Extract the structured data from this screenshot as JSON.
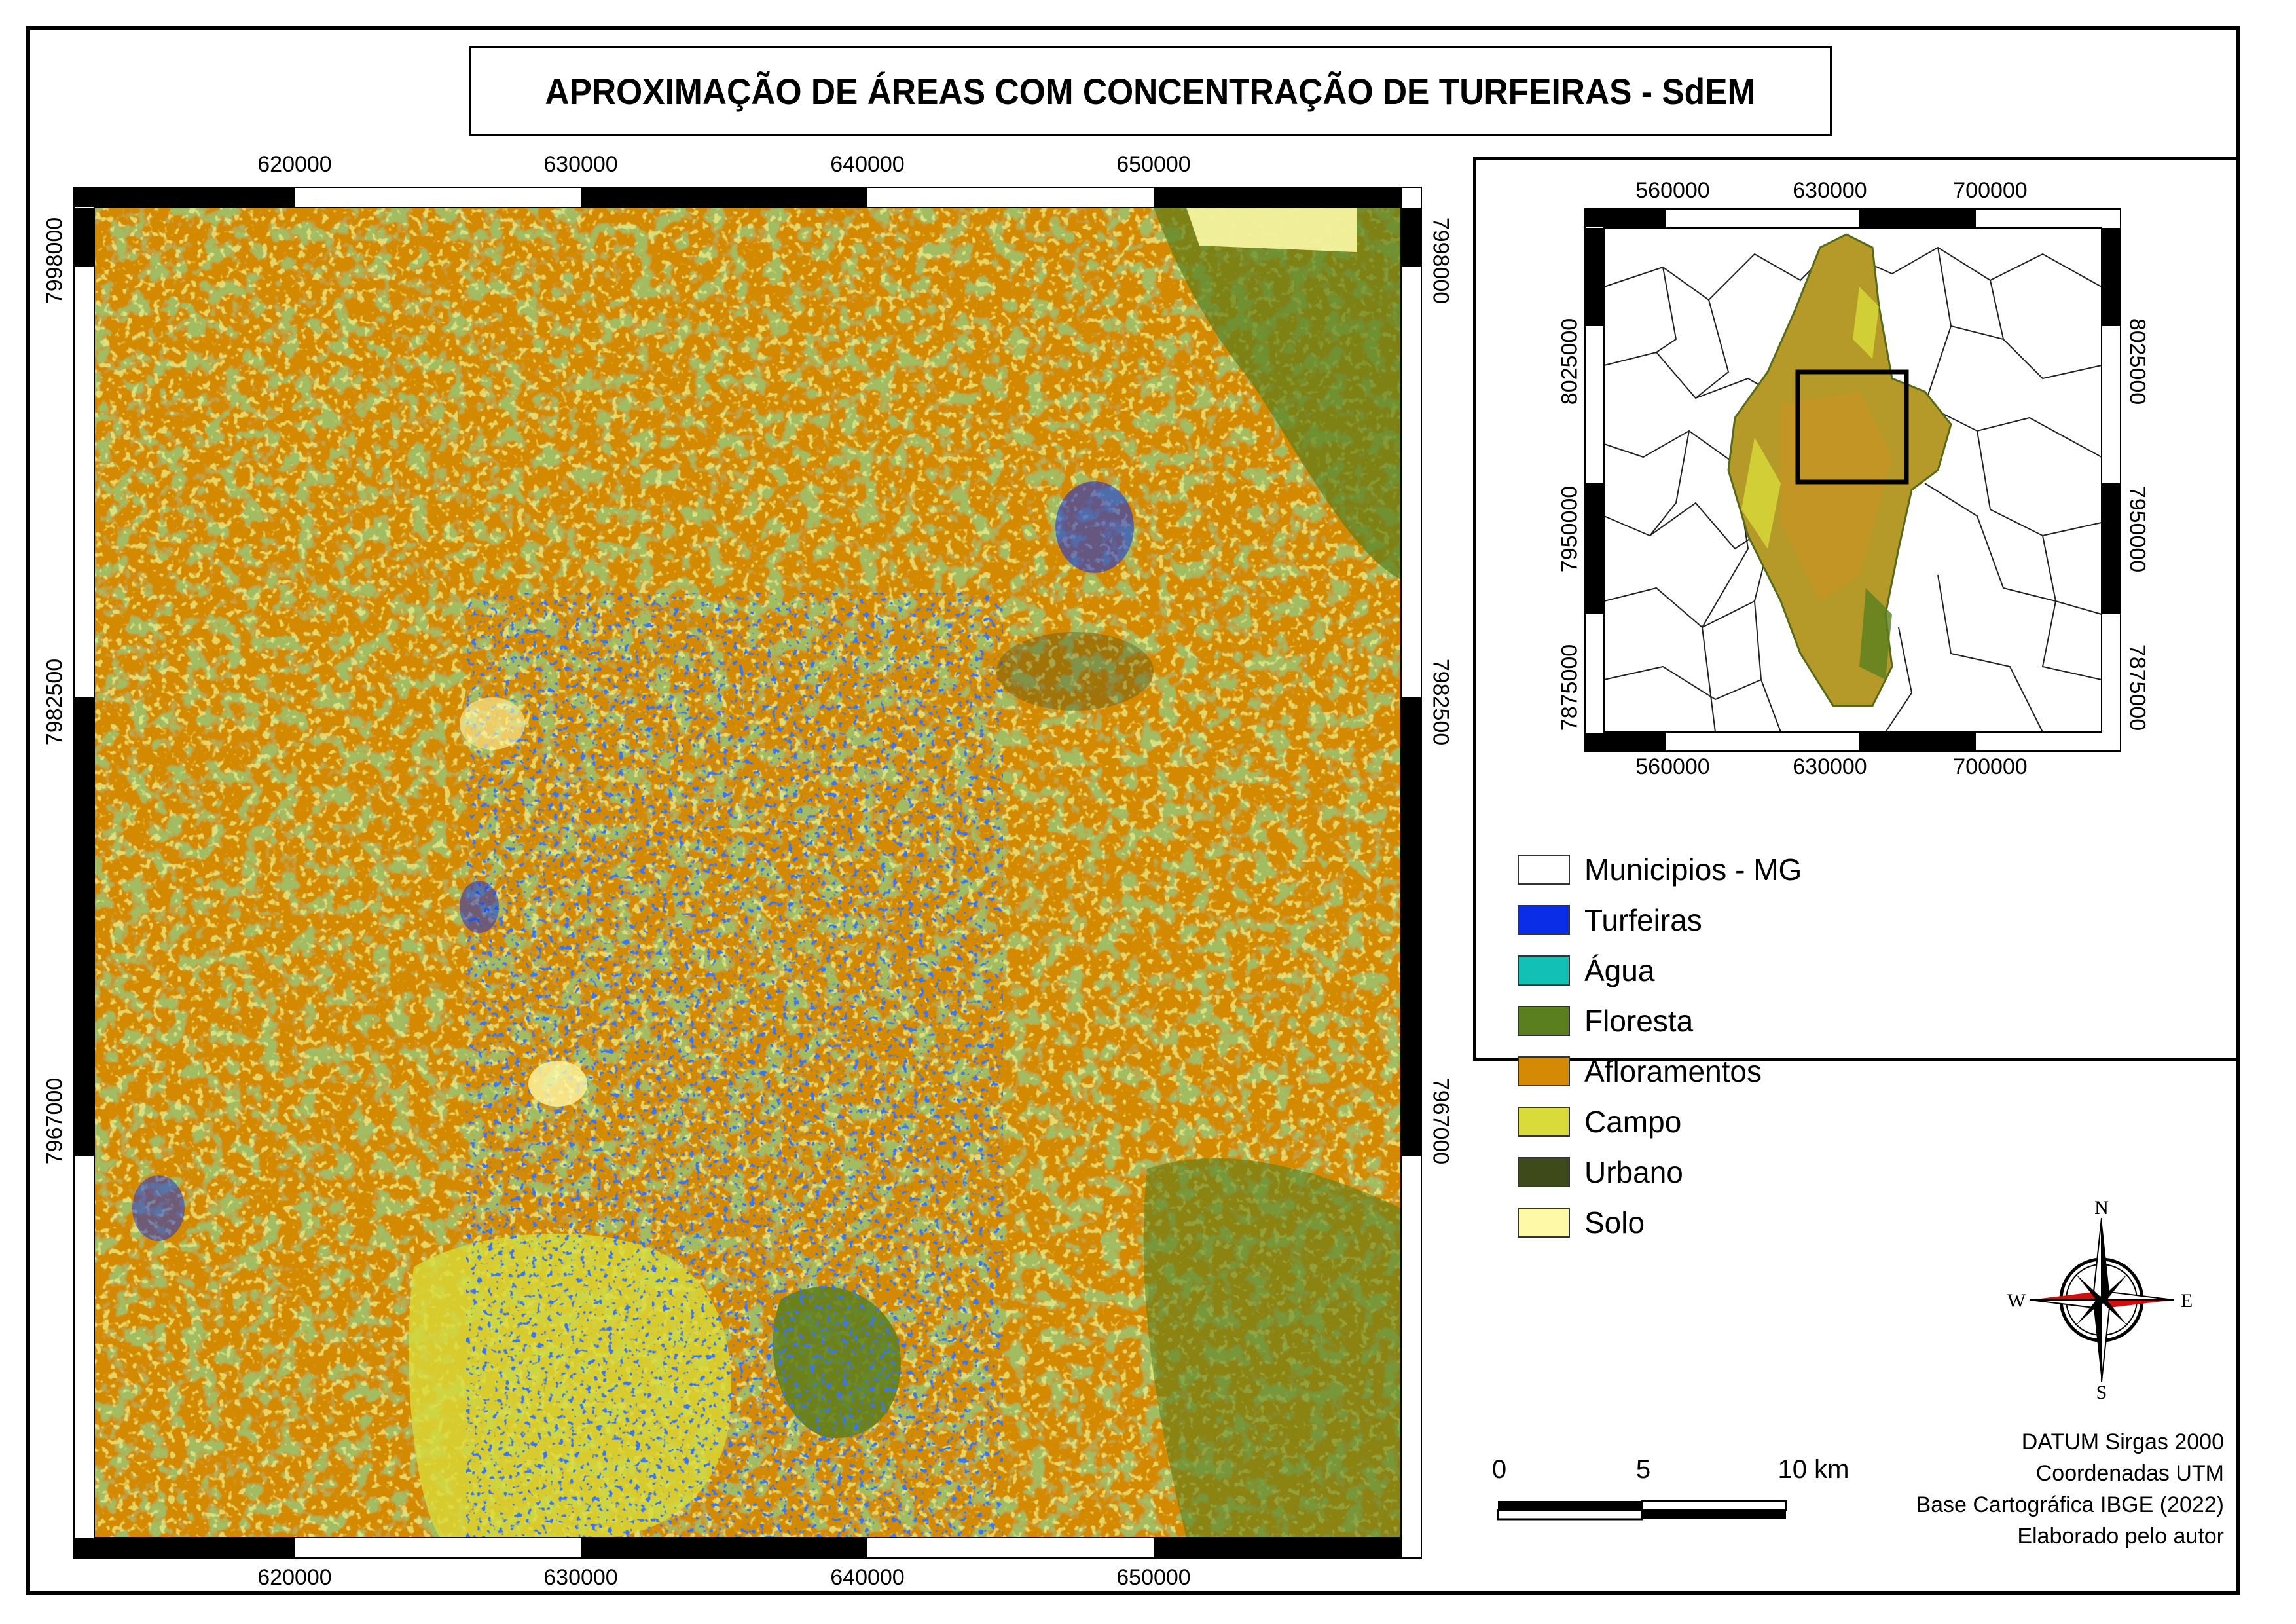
{
  "title": "APROXIMAÇÃO DE ÁREAS COM CONCENTRAÇÃO DE TURFEIRAS - SdEM",
  "main_map": {
    "x_ticks": [
      "620000",
      "630000",
      "640000",
      "650000"
    ],
    "y_ticks": [
      "7998000",
      "7982500",
      "7967000"
    ]
  },
  "inset_map": {
    "x_ticks": [
      "560000",
      "630000",
      "700000"
    ],
    "y_ticks": [
      "8025000",
      "7950000",
      "7875000"
    ]
  },
  "legend": [
    {
      "label": "Municipios - MG",
      "color": "#ffffff"
    },
    {
      "label": "Turfeiras",
      "color": "#0a2ee8"
    },
    {
      "label": "Água",
      "color": "#12c0b6"
    },
    {
      "label": "Floresta",
      "color": "#5a7f1e"
    },
    {
      "label": "Afloramentos",
      "color": "#d48a05"
    },
    {
      "label": "Campo",
      "color": "#d8db3a"
    },
    {
      "label": "Urbano",
      "color": "#3f4a1b"
    },
    {
      "label": "Solo",
      "color": "#fdf9a6"
    }
  ],
  "compass": {
    "n": "N",
    "s": "S",
    "e": "E",
    "w": "W"
  },
  "scale_bar": {
    "labels": [
      "0",
      "5",
      "10 km"
    ]
  },
  "credits": [
    "DATUM Sirgas 2000",
    "Coordenadas UTM",
    "Base Cartográfica IBGE (2022)",
    "Elaborado pelo autor"
  ]
}
